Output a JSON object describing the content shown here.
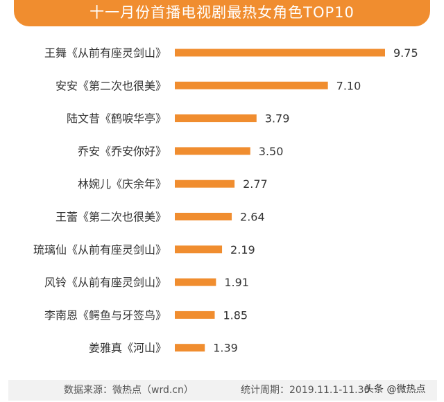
{
  "chart_data": {
    "type": "bar",
    "orientation": "horizontal",
    "title": "十一月份首播电视剧最热女角色TOP10",
    "categories": [
      "王舞《从前有座灵剑山》",
      "安安《第二次也很美》",
      "陆文昔《鹤唳华亭》",
      "乔安《乔安你好》",
      "林婉儿《庆余年》",
      "王蕾《第二次也很美》",
      "琉璃仙《从前有座灵剑山》",
      "风铃《从前有座灵剑山》",
      "李南恩《鳄鱼与牙签鸟》",
      "姜雅真《河山》"
    ],
    "values": [
      9.75,
      7.1,
      3.79,
      3.5,
      2.77,
      2.64,
      2.19,
      1.91,
      1.85,
      1.39
    ],
    "value_labels": [
      "9.75",
      "7.10",
      "3.79",
      "3.50",
      "2.77",
      "2.64",
      "2.19",
      "1.91",
      "1.85",
      "1.39"
    ],
    "xlim": [
      0,
      9.75
    ],
    "grid": false,
    "bar_color": "#f08d2f"
  },
  "footer": {
    "source": "数据来源：微热点（wrd.cn）",
    "period": "统计周期：2019.11.1-11.30"
  },
  "watermark": "头条 @微热点"
}
